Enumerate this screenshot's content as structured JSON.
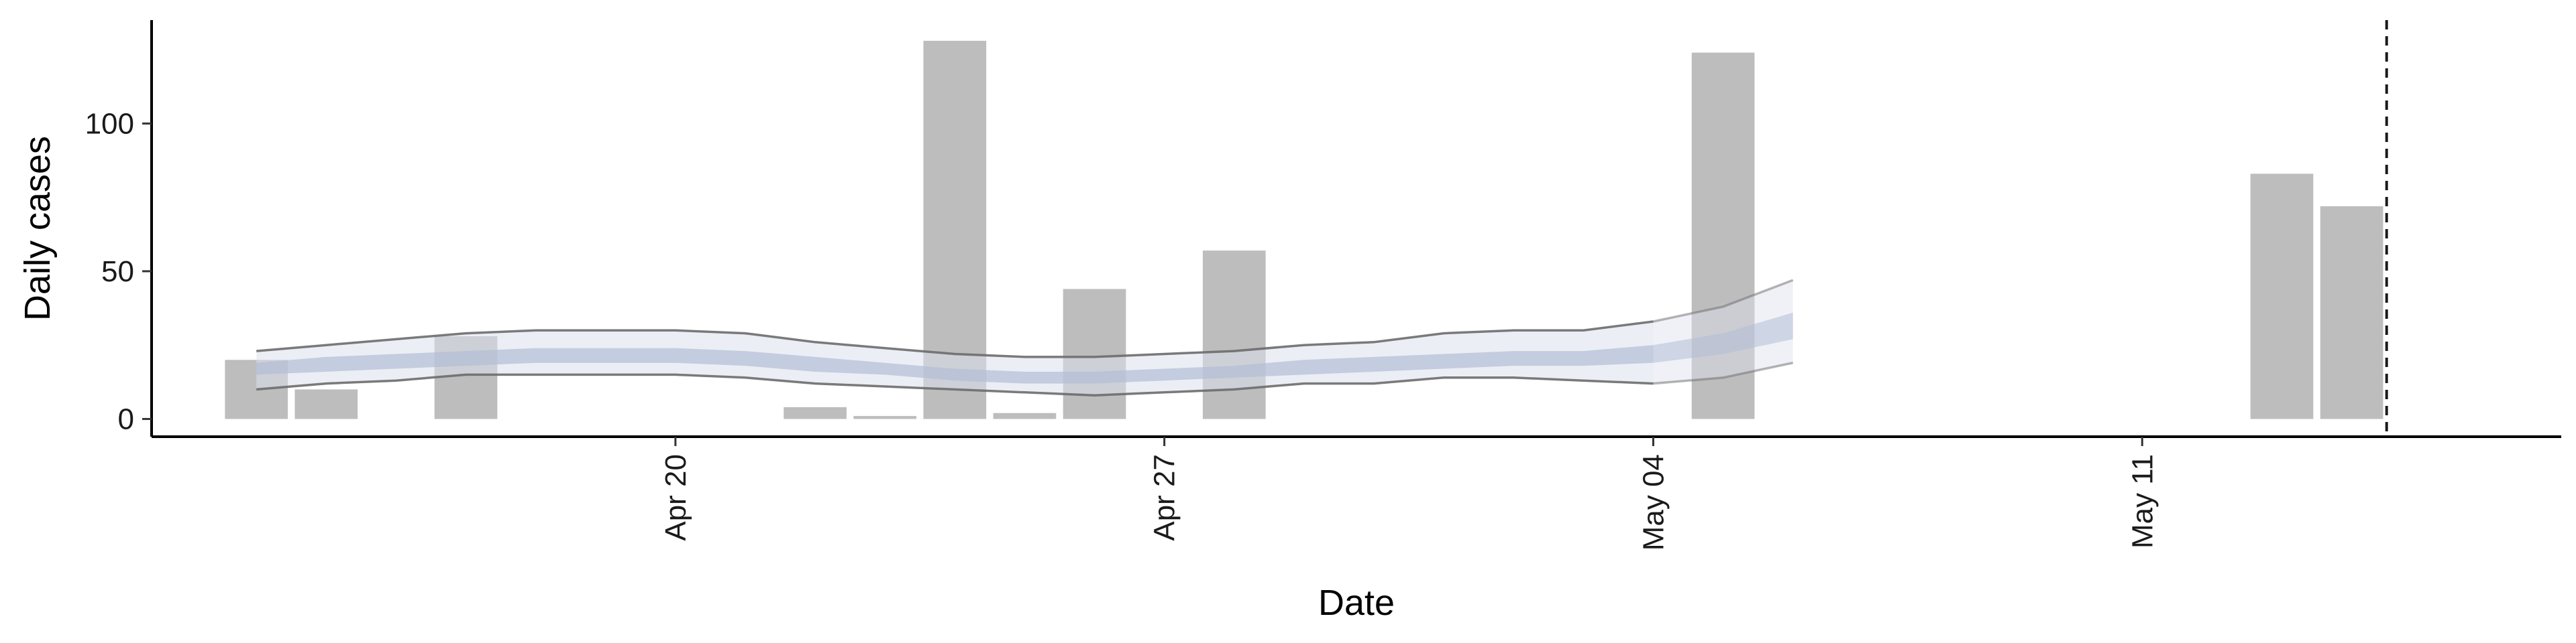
{
  "chart_data": {
    "type": "bar",
    "xlabel": "Date",
    "ylabel": "Daily cases",
    "ylim": [
      -6,
      135
    ],
    "xlim": [
      "2020-04-12T12:00",
      "2020-05-17T00:00"
    ],
    "y_ticks": [
      0,
      50,
      100
    ],
    "y_tick_labels": [
      "0",
      "50",
      "100"
    ],
    "x_ticks": [
      "2020-04-20",
      "2020-04-27",
      "2020-05-04",
      "2020-05-11"
    ],
    "x_tick_labels": [
      "Apr 20",
      "Apr 27",
      "May 04",
      "May 11"
    ],
    "grid": false,
    "legend": "none",
    "bars": {
      "name": "Daily cases",
      "color": "#bdbdbd",
      "points": [
        {
          "date": "2020-04-14",
          "value": 20
        },
        {
          "date": "2020-04-15",
          "value": 10
        },
        {
          "date": "2020-04-17",
          "value": 28
        },
        {
          "date": "2020-04-22",
          "value": 4
        },
        {
          "date": "2020-04-23",
          "value": 1
        },
        {
          "date": "2020-04-24",
          "value": 128
        },
        {
          "date": "2020-04-25",
          "value": 2
        },
        {
          "date": "2020-04-26",
          "value": 44
        },
        {
          "date": "2020-04-28",
          "value": 57
        },
        {
          "date": "2020-05-05",
          "value": 124
        },
        {
          "date": "2020-05-13",
          "value": 83
        },
        {
          "date": "2020-05-14",
          "value": 72
        }
      ]
    },
    "estimate": {
      "dates": [
        "2020-04-14",
        "2020-04-15",
        "2020-04-16",
        "2020-04-17",
        "2020-04-18",
        "2020-04-19",
        "2020-04-20",
        "2020-04-21",
        "2020-04-22",
        "2020-04-23",
        "2020-04-24",
        "2020-04-25",
        "2020-04-26",
        "2020-04-27",
        "2020-04-28",
        "2020-04-29",
        "2020-04-30",
        "2020-05-01",
        "2020-05-02",
        "2020-05-03",
        "2020-05-04",
        "2020-05-05",
        "2020-05-06"
      ],
      "outer_upper": [
        23,
        25,
        27,
        29,
        30,
        30,
        30,
        29,
        26,
        24,
        22,
        21,
        21,
        22,
        23,
        25,
        26,
        29,
        30,
        30,
        33,
        38,
        47
      ],
      "outer_lower": [
        10,
        12,
        13,
        15,
        15,
        15,
        15,
        14,
        12,
        11,
        10,
        9,
        8,
        9,
        10,
        12,
        12,
        14,
        14,
        13,
        12,
        14,
        19
      ],
      "inner_upper": [
        19,
        21,
        22,
        23,
        24,
        24,
        24,
        23,
        21,
        19,
        17,
        16,
        16,
        17,
        18,
        20,
        21,
        22,
        23,
        23,
        25,
        29,
        36
      ],
      "inner_lower": [
        15,
        16,
        17,
        18,
        19,
        19,
        19,
        18,
        16,
        15,
        13,
        12,
        12,
        13,
        14,
        15,
        16,
        17,
        18,
        18,
        19,
        22,
        27
      ],
      "outer_band_color": "#dde0ec",
      "inner_band_color": "#b3bdd6",
      "bound_line_color": "#6b6b6b",
      "projection_start": "2020-05-04"
    },
    "cutoff_line": {
      "date": "2020-05-14T12:00",
      "style": "dashed",
      "color": "#1a1a1a"
    }
  }
}
